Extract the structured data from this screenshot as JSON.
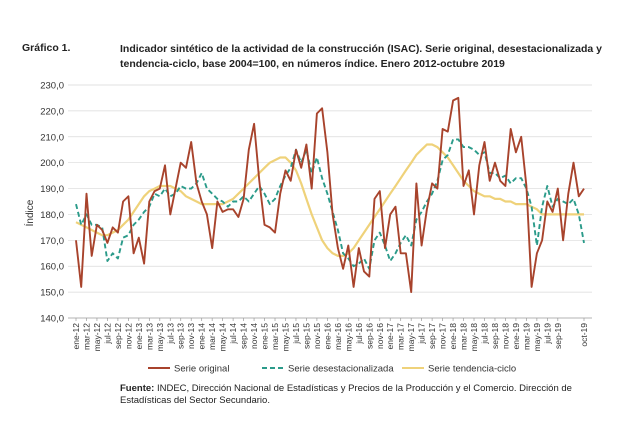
{
  "figure_label": "Gráfico 1.",
  "figure_title": "Indicador sintético de la actividad de la construcción (ISAC). Serie original, desestacionalizada y tendencia-ciclo, base 2004=100, en números índice. Enero 2012-octubre 2019",
  "source_prefix": "Fuente:",
  "source_text": "INDEC, Dirección Nacional de Estadísticas y Precios de la Producción y el Comercio. Dirección de Estadísticas del Sector Secundario.",
  "colors": {
    "original": "#a8432c",
    "desestacionalizada": "#2b9b8a",
    "tendencia": "#efd27a",
    "axis": "#9a9a9a"
  },
  "chart_data": {
    "type": "line",
    "ylabel": "Índice",
    "ylim": [
      140,
      230
    ],
    "yticks": [
      "140,0",
      "150,0",
      "160,0",
      "170,0",
      "180,0",
      "190,0",
      "200,0",
      "210,0",
      "220,0",
      "230,0"
    ],
    "xtick_labels": [
      "ene-12",
      "mar-12",
      "may-12",
      "jul-12",
      "sep-12",
      "nov-12",
      "ene-13",
      "mar-13",
      "may-13",
      "jul-13",
      "sep-13",
      "nov-13",
      "ene-14",
      "mar-14",
      "may-14",
      "jul-14",
      "sep-14",
      "nov-14",
      "ene-15",
      "mar-15",
      "may-15",
      "jul-15",
      "sep-15",
      "nov-15",
      "ene-16",
      "mar-16",
      "may-16",
      "jul-16",
      "sep-16",
      "nov-16",
      "ene-17",
      "mar-17",
      "may-17",
      "jul-17",
      "sep-17",
      "nov-17",
      "ene-18",
      "mar-18",
      "may-18",
      "jul-18",
      "sep-18",
      "nov-18",
      "ene-19",
      "mar-19",
      "may-19",
      "jul-19",
      "sep-19",
      "oct-19"
    ],
    "legend_position": "bottom",
    "series": [
      {
        "name": "Serie original",
        "style": "solid",
        "values": [
          170,
          152,
          188,
          164,
          176,
          174,
          169,
          175,
          173,
          185,
          187,
          165,
          171,
          161,
          185,
          189,
          190,
          199,
          180,
          190,
          200,
          198,
          208,
          192,
          185,
          180,
          167,
          185,
          181,
          182,
          182,
          179,
          186,
          205,
          215,
          193,
          176,
          175,
          173,
          188,
          197,
          193,
          205,
          198,
          207,
          190,
          219,
          221,
          204,
          180,
          167,
          159,
          168,
          152,
          167,
          158,
          156,
          186,
          189,
          167,
          180,
          183,
          165,
          165,
          150,
          192,
          168,
          182,
          192,
          190,
          213,
          212,
          224,
          225,
          191,
          197,
          180,
          199,
          208,
          193,
          200,
          193,
          191,
          213,
          204,
          210,
          191,
          152,
          165,
          170,
          185,
          181,
          190,
          170,
          188,
          200,
          187,
          190
        ],
        "min": 150,
        "max": 225
      },
      {
        "name": "Serie desestacionalizada",
        "style": "dashed",
        "values": [
          184,
          176,
          180,
          176,
          176,
          175,
          162,
          165,
          163,
          171,
          172,
          176,
          178,
          181,
          183,
          188,
          187,
          190,
          187,
          188,
          191,
          190,
          190,
          192,
          196,
          190,
          188,
          186,
          185,
          183,
          185,
          185,
          187,
          185,
          188,
          191,
          188,
          184,
          186,
          191,
          195,
          198,
          205,
          200,
          205,
          196,
          202,
          194,
          188,
          181,
          174,
          165,
          163,
          160,
          161,
          163,
          159,
          170,
          173,
          168,
          162,
          165,
          169,
          172,
          168,
          178,
          181,
          185,
          188,
          193,
          201,
          203,
          209,
          209,
          206,
          206,
          205,
          203,
          204,
          196,
          196,
          194,
          195,
          192,
          194,
          194,
          190,
          183,
          168,
          183,
          191,
          183,
          186,
          185,
          184,
          186,
          180,
          169
        ],
        "min": 159,
        "max": 209
      },
      {
        "name": "Serie tendencia-ciclo",
        "style": "solid",
        "values": [
          177,
          176,
          175,
          174,
          173,
          172,
          172,
          173,
          174,
          176,
          178,
          181,
          184,
          187,
          189,
          190,
          191,
          191,
          191,
          190,
          189,
          187,
          186,
          185,
          184,
          184,
          184,
          184,
          184,
          185,
          186,
          188,
          190,
          192,
          194,
          196,
          198,
          200,
          201,
          202,
          202,
          200,
          197,
          192,
          186,
          180,
          175,
          170,
          167,
          165,
          164,
          164,
          165,
          167,
          170,
          173,
          176,
          179,
          182,
          185,
          188,
          191,
          194,
          197,
          200,
          203,
          205,
          207,
          207,
          206,
          204,
          202,
          199,
          196,
          193,
          191,
          189,
          188,
          187,
          187,
          186,
          186,
          185,
          185,
          184,
          184,
          184,
          183,
          182,
          180,
          180,
          180,
          180,
          180,
          180,
          180,
          180,
          180
        ],
        "min": 164,
        "max": 207
      }
    ]
  }
}
